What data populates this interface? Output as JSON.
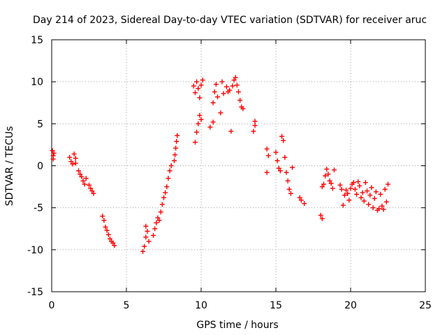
{
  "chart_data": {
    "type": "scatter",
    "title": "Day 214 of 2023, Sidereal Day-to-day VTEC variation (SDTVAR) for receiver aruc",
    "xlabel": "GPS time / hours",
    "ylabel": "SDTVAR / TECUs",
    "xlim": [
      0,
      25
    ],
    "ylim": [
      -15,
      15
    ],
    "xticks": [
      0,
      5,
      10,
      15,
      20,
      25
    ],
    "yticks": [
      -15,
      -10,
      -5,
      0,
      5,
      10,
      15
    ],
    "grid": true,
    "marker": "plus",
    "color": "#ff0000",
    "series": [
      {
        "name": "SDTVAR",
        "points": [
          [
            0.05,
            1.8
          ],
          [
            0.1,
            1.2
          ],
          [
            0.1,
            0.8
          ],
          [
            0.15,
            1.5
          ],
          [
            1.2,
            1.0
          ],
          [
            1.3,
            0.5
          ],
          [
            1.4,
            0.2
          ],
          [
            1.5,
            1.4
          ],
          [
            1.6,
            0.9
          ],
          [
            1.6,
            0.3
          ],
          [
            1.8,
            -0.6
          ],
          [
            1.9,
            -1.0
          ],
          [
            2.0,
            -1.3
          ],
          [
            2.1,
            -1.8
          ],
          [
            2.2,
            -2.2
          ],
          [
            2.3,
            -1.5
          ],
          [
            2.5,
            -2.3
          ],
          [
            2.6,
            -2.7
          ],
          [
            2.7,
            -3.0
          ],
          [
            2.8,
            -3.3
          ],
          [
            3.4,
            -6.0
          ],
          [
            3.5,
            -6.5
          ],
          [
            3.6,
            -7.3
          ],
          [
            3.7,
            -7.7
          ],
          [
            3.8,
            -8.2
          ],
          [
            3.9,
            -8.7
          ],
          [
            4.0,
            -9.0
          ],
          [
            4.1,
            -9.2
          ],
          [
            4.2,
            -9.5
          ],
          [
            6.1,
            -10.2
          ],
          [
            6.2,
            -9.6
          ],
          [
            6.3,
            -8.5
          ],
          [
            6.4,
            -7.8
          ],
          [
            6.3,
            -7.2
          ],
          [
            6.5,
            -9.0
          ],
          [
            6.8,
            -8.3
          ],
          [
            6.9,
            -7.5
          ],
          [
            7.0,
            -6.8
          ],
          [
            7.1,
            -6.2
          ],
          [
            7.2,
            -6.5
          ],
          [
            7.3,
            -5.5
          ],
          [
            7.4,
            -4.6
          ],
          [
            7.5,
            -3.8
          ],
          [
            7.6,
            -3.2
          ],
          [
            7.7,
            -2.5
          ],
          [
            7.8,
            -1.5
          ],
          [
            7.9,
            -0.6
          ],
          [
            8.0,
            0.0
          ],
          [
            8.2,
            0.6
          ],
          [
            8.25,
            1.3
          ],
          [
            8.3,
            2.1
          ],
          [
            8.35,
            2.9
          ],
          [
            8.4,
            3.6
          ],
          [
            9.6,
            2.8
          ],
          [
            9.7,
            4.0
          ],
          [
            9.8,
            5.0
          ],
          [
            9.9,
            6.0
          ],
          [
            10.0,
            5.5
          ],
          [
            9.5,
            9.5
          ],
          [
            9.6,
            8.7
          ],
          [
            9.7,
            10.0
          ],
          [
            9.8,
            9.2
          ],
          [
            9.9,
            8.1
          ],
          [
            10.0,
            9.6
          ],
          [
            10.1,
            10.2
          ],
          [
            10.6,
            4.6
          ],
          [
            10.8,
            5.2
          ],
          [
            10.8,
            7.5
          ],
          [
            10.9,
            8.8
          ],
          [
            11.0,
            9.7
          ],
          [
            11.1,
            8.2
          ],
          [
            11.3,
            6.3
          ],
          [
            11.4,
            10.0
          ],
          [
            11.5,
            8.6
          ],
          [
            11.7,
            9.4
          ],
          [
            11.8,
            8.8
          ],
          [
            11.9,
            9.0
          ],
          [
            12.0,
            4.1
          ],
          [
            12.1,
            9.5
          ],
          [
            12.2,
            10.2
          ],
          [
            12.3,
            10.5
          ],
          [
            12.4,
            9.6
          ],
          [
            12.5,
            8.8
          ],
          [
            12.6,
            7.8
          ],
          [
            12.7,
            7.0
          ],
          [
            12.8,
            6.8
          ],
          [
            13.5,
            4.1
          ],
          [
            13.6,
            4.8
          ],
          [
            13.6,
            5.3
          ],
          [
            14.4,
            2.0
          ],
          [
            14.5,
            1.2
          ],
          [
            14.4,
            -0.8
          ],
          [
            15.0,
            1.6
          ],
          [
            15.1,
            0.6
          ],
          [
            15.2,
            -0.3
          ],
          [
            15.3,
            -0.6
          ],
          [
            15.4,
            3.5
          ],
          [
            15.5,
            3.0
          ],
          [
            15.6,
            1.0
          ],
          [
            15.7,
            -0.8
          ],
          [
            15.8,
            -1.8
          ],
          [
            15.9,
            -2.8
          ],
          [
            16.0,
            -3.3
          ],
          [
            16.1,
            -0.2
          ],
          [
            16.6,
            -3.8
          ],
          [
            16.7,
            -4.1
          ],
          [
            16.9,
            -4.5
          ],
          [
            18.0,
            -5.9
          ],
          [
            18.1,
            -6.3
          ],
          [
            18.1,
            -2.5
          ],
          [
            18.2,
            -2.2
          ],
          [
            18.3,
            -1.2
          ],
          [
            18.4,
            -0.4
          ],
          [
            18.5,
            -1.0
          ],
          [
            18.6,
            -1.8
          ],
          [
            18.7,
            -2.1
          ],
          [
            18.8,
            -2.7
          ],
          [
            18.9,
            -0.5
          ],
          [
            19.3,
            -2.3
          ],
          [
            19.4,
            -2.8
          ],
          [
            19.5,
            -4.7
          ],
          [
            19.6,
            -3.5
          ],
          [
            19.7,
            -2.9
          ],
          [
            19.8,
            -3.3
          ],
          [
            19.9,
            -4.1
          ],
          [
            20.0,
            -2.7
          ],
          [
            20.1,
            -2.2
          ],
          [
            20.2,
            -2.0
          ],
          [
            20.3,
            -2.8
          ],
          [
            20.4,
            -3.4
          ],
          [
            20.5,
            -1.9
          ],
          [
            20.6,
            -2.4
          ],
          [
            20.7,
            -3.8
          ],
          [
            20.8,
            -3.2
          ],
          [
            20.9,
            -4.2
          ],
          [
            21.0,
            -2.0
          ],
          [
            21.1,
            -3.0
          ],
          [
            21.2,
            -4.6
          ],
          [
            21.3,
            -3.5
          ],
          [
            21.4,
            -2.6
          ],
          [
            21.5,
            -5.0
          ],
          [
            21.6,
            -3.9
          ],
          [
            21.7,
            -3.1
          ],
          [
            21.8,
            -5.3
          ],
          [
            21.9,
            -5.1
          ],
          [
            22.0,
            -3.4
          ],
          [
            22.1,
            -4.8
          ],
          [
            22.2,
            -5.2
          ],
          [
            22.3,
            -2.8
          ],
          [
            22.4,
            -4.3
          ],
          [
            22.5,
            -2.2
          ]
        ]
      }
    ]
  }
}
